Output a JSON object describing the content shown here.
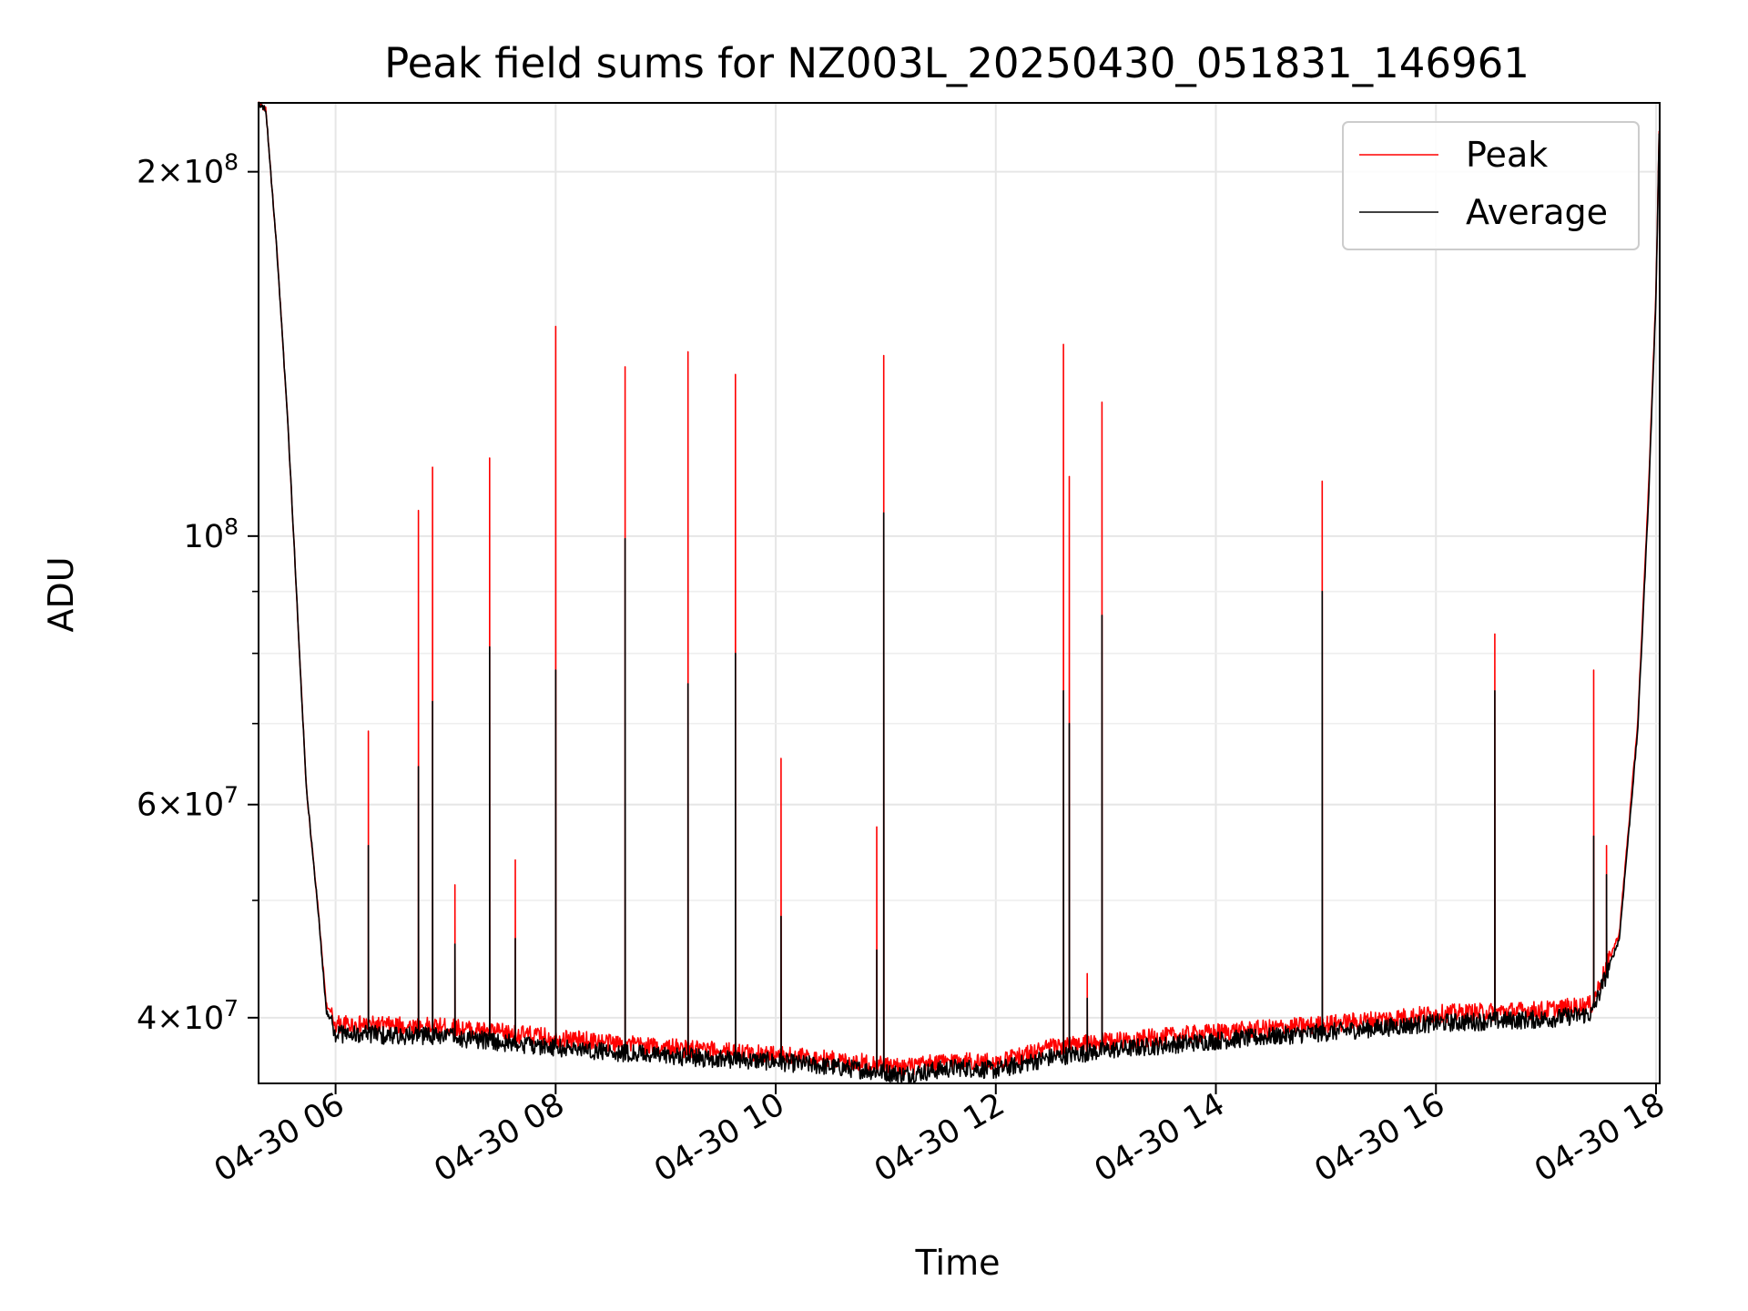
{
  "chart_data": {
    "type": "line",
    "title": "Peak field sums for NZ003L_20250430_051831_146961",
    "xlabel": "Time",
    "ylabel": "ADU",
    "yscale": "log",
    "ylim": [
      35300000,
      228000000
    ],
    "xlim": [
      "2025-04-30 05:18",
      "2025-04-30 18:02"
    ],
    "grid": true,
    "legend_position": "top-right",
    "x_ticks": [
      {
        "time": "2025-04-30 06:00",
        "label": "04-30 06"
      },
      {
        "time": "2025-04-30 08:00",
        "label": "04-30 08"
      },
      {
        "time": "2025-04-30 10:00",
        "label": "04-30 10"
      },
      {
        "time": "2025-04-30 12:00",
        "label": "04-30 12"
      },
      {
        "time": "2025-04-30 14:00",
        "label": "04-30 14"
      },
      {
        "time": "2025-04-30 16:00",
        "label": "04-30 16"
      },
      {
        "time": "2025-04-30 18:00",
        "label": "04-30 18"
      }
    ],
    "y_ticks": [
      {
        "value": 40000000,
        "base": "4",
        "exp": "7"
      },
      {
        "value": 60000000,
        "base": "6",
        "exp": "7"
      },
      {
        "value": 100000000,
        "base": "",
        "exp": "8"
      },
      {
        "value": 200000000,
        "base": "2",
        "exp": "8"
      }
    ],
    "y_minor_ticks": [
      50000000,
      70000000,
      80000000,
      90000000
    ],
    "series": [
      {
        "name": "Peak",
        "color": "#ff0000",
        "baseline_points": [
          [
            "2025-04-30 05:18",
            228000000
          ],
          [
            "2025-04-30 05:22",
            225000000
          ],
          [
            "2025-04-30 05:28",
            172000000
          ],
          [
            "2025-04-30 05:34",
            124000000
          ],
          [
            "2025-04-30 05:40",
            82000000
          ],
          [
            "2025-04-30 05:44",
            62000000
          ],
          [
            "2025-04-30 05:50",
            50000000
          ],
          [
            "2025-04-30 05:55",
            41000000
          ],
          [
            "2025-04-30 06:00",
            39500000
          ],
          [
            "2025-04-30 07:00",
            39300000
          ],
          [
            "2025-04-30 08:00",
            38500000
          ],
          [
            "2025-04-30 09:00",
            37800000
          ],
          [
            "2025-04-30 10:00",
            37300000
          ],
          [
            "2025-04-30 10:50",
            36700000
          ],
          [
            "2025-04-30 11:10",
            36400000
          ],
          [
            "2025-04-30 11:40",
            36900000
          ],
          [
            "2025-04-30 12:00",
            36700000
          ],
          [
            "2025-04-30 12:30",
            37800000
          ],
          [
            "2025-04-30 13:00",
            38200000
          ],
          [
            "2025-04-30 14:00",
            38900000
          ],
          [
            "2025-04-30 15:00",
            39500000
          ],
          [
            "2025-04-30 16:00",
            40300000
          ],
          [
            "2025-04-30 17:00",
            40600000
          ],
          [
            "2025-04-30 17:25",
            41000000
          ],
          [
            "2025-04-30 17:40",
            47000000
          ],
          [
            "2025-04-30 17:50",
            70000000
          ],
          [
            "2025-04-30 17:56",
            110000000
          ],
          [
            "2025-04-30 18:00",
            160000000
          ],
          [
            "2025-04-30 18:02",
            228000000
          ]
        ],
        "spikes": [
          [
            "2025-04-30 06:18",
            69000000
          ],
          [
            "2025-04-30 06:45",
            105000000
          ],
          [
            "2025-04-30 06:53",
            114000000
          ],
          [
            "2025-04-30 07:05",
            51500000
          ],
          [
            "2025-04-30 07:24",
            116000000
          ],
          [
            "2025-04-30 07:38",
            54000000
          ],
          [
            "2025-04-30 08:00",
            149000000
          ],
          [
            "2025-04-30 08:38",
            138000000
          ],
          [
            "2025-04-30 09:12",
            142000000
          ],
          [
            "2025-04-30 09:38",
            136000000
          ],
          [
            "2025-04-30 10:03",
            65500000
          ],
          [
            "2025-04-30 10:55",
            57500000
          ],
          [
            "2025-04-30 10:59",
            141000000
          ],
          [
            "2025-04-30 12:37",
            144000000
          ],
          [
            "2025-04-30 12:40",
            112000000
          ],
          [
            "2025-04-30 12:50",
            43500000
          ],
          [
            "2025-04-30 12:58",
            129000000
          ],
          [
            "2025-04-30 14:58",
            111000000
          ],
          [
            "2025-04-30 16:32",
            83000000
          ],
          [
            "2025-04-30 17:26",
            77500000
          ],
          [
            "2025-04-30 17:33",
            55500000
          ]
        ]
      },
      {
        "name": "Average",
        "color": "#000000",
        "baseline_points": [
          [
            "2025-04-30 05:18",
            228000000
          ],
          [
            "2025-04-30 05:22",
            225000000
          ],
          [
            "2025-04-30 05:28",
            172000000
          ],
          [
            "2025-04-30 05:34",
            124000000
          ],
          [
            "2025-04-30 05:40",
            82000000
          ],
          [
            "2025-04-30 05:44",
            62000000
          ],
          [
            "2025-04-30 05:50",
            50000000
          ],
          [
            "2025-04-30 05:55",
            40500000
          ],
          [
            "2025-04-30 06:00",
            38800000
          ],
          [
            "2025-04-30 07:00",
            38600000
          ],
          [
            "2025-04-30 08:00",
            37800000
          ],
          [
            "2025-04-30 09:00",
            37200000
          ],
          [
            "2025-04-30 10:00",
            36800000
          ],
          [
            "2025-04-30 10:50",
            36200000
          ],
          [
            "2025-04-30 11:10",
            35900000
          ],
          [
            "2025-04-30 11:40",
            36400000
          ],
          [
            "2025-04-30 12:00",
            36200000
          ],
          [
            "2025-04-30 12:30",
            37100000
          ],
          [
            "2025-04-30 13:00",
            37600000
          ],
          [
            "2025-04-30 14:00",
            38300000
          ],
          [
            "2025-04-30 15:00",
            38900000
          ],
          [
            "2025-04-30 16:00",
            39600000
          ],
          [
            "2025-04-30 17:00",
            39900000
          ],
          [
            "2025-04-30 17:25",
            40300000
          ],
          [
            "2025-04-30 17:40",
            46500000
          ],
          [
            "2025-04-30 17:50",
            69000000
          ],
          [
            "2025-04-30 17:56",
            108000000
          ],
          [
            "2025-04-30 18:00",
            158000000
          ],
          [
            "2025-04-30 18:02",
            228000000
          ]
        ],
        "spikes": [
          [
            "2025-04-30 06:18",
            55500000
          ],
          [
            "2025-04-30 06:45",
            64500000
          ],
          [
            "2025-04-30 06:53",
            73000000
          ],
          [
            "2025-04-30 07:05",
            46000000
          ],
          [
            "2025-04-30 07:24",
            81000000
          ],
          [
            "2025-04-30 07:38",
            46500000
          ],
          [
            "2025-04-30 08:00",
            77500000
          ],
          [
            "2025-04-30 08:38",
            99500000
          ],
          [
            "2025-04-30 09:12",
            75500000
          ],
          [
            "2025-04-30 09:38",
            80000000
          ],
          [
            "2025-04-30 10:03",
            48500000
          ],
          [
            "2025-04-30 10:55",
            45500000
          ],
          [
            "2025-04-30 10:59",
            104500000
          ],
          [
            "2025-04-30 12:37",
            74500000
          ],
          [
            "2025-04-30 12:40",
            70000000
          ],
          [
            "2025-04-30 12:50",
            41500000
          ],
          [
            "2025-04-30 12:58",
            86000000
          ],
          [
            "2025-04-30 14:58",
            90000000
          ],
          [
            "2025-04-30 16:32",
            74500000
          ],
          [
            "2025-04-30 17:26",
            56500000
          ],
          [
            "2025-04-30 17:33",
            52500000
          ]
        ]
      }
    ]
  }
}
